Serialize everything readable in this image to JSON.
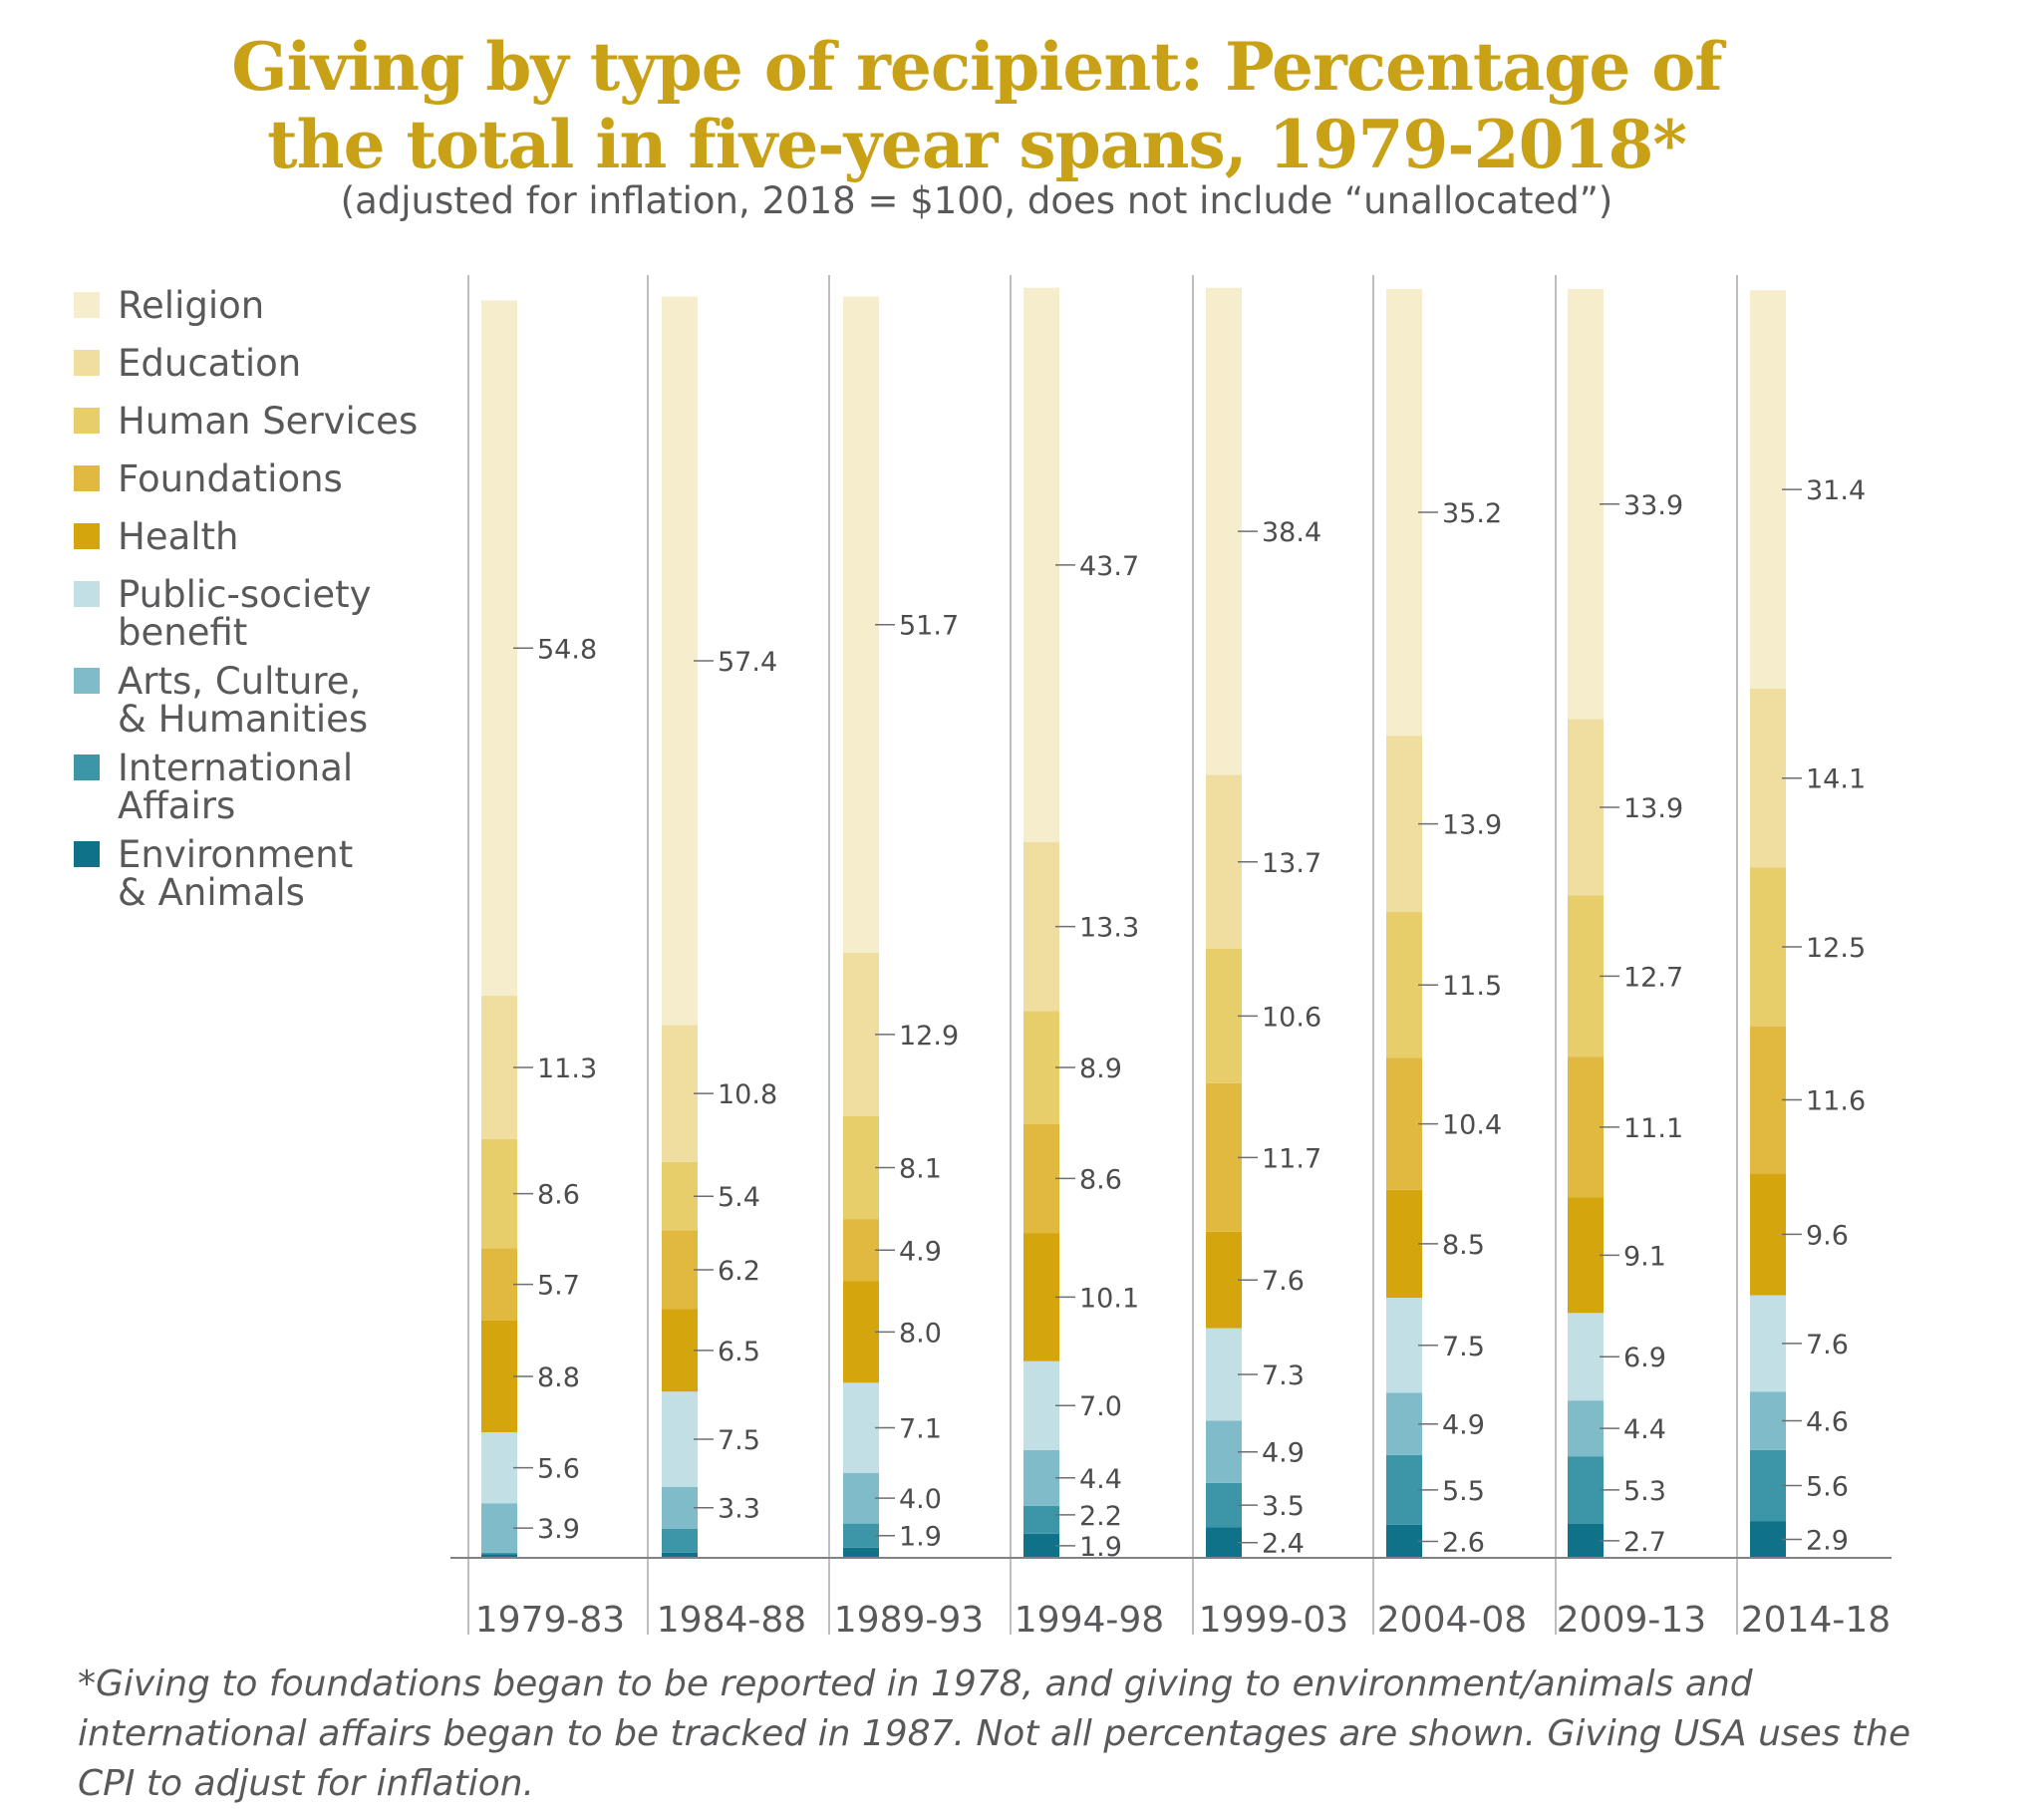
{
  "title_line1": "Giving by type of recipient: Percentage of",
  "title_line2": "the total in five-year spans, 1979-2018*",
  "subtitle": "(adjusted for inflation, 2018 = $100, does not include “unallocated”)",
  "footnote": "*Giving to foundations began to be reported in 1978, and giving to environment/animals and international affairs began to be tracked in 1987. Not all percentages are shown. Giving USA uses the CPI to adjust for inflation.",
  "colors": {
    "Religion": "#f6edcc",
    "Education": "#f0deA0",
    "Human Services": "#e8cd6b",
    "Foundations": "#e0b93e",
    "Health": "#d4a50d",
    "Public-society benefit": "#c1dfe5",
    "Arts, Culture, & Humanities": "#7fbbc9",
    "International Affairs": "#3d95a8",
    "Environment & Animals": "#0f7289"
  },
  "chart_data": {
    "type": "bar",
    "stacked": true,
    "categories": [
      "1979-83",
      "1984-88",
      "1989-93",
      "1994-98",
      "1999-03",
      "2004-08",
      "2009-13",
      "2014-18"
    ],
    "legend": [
      [
        "Religion"
      ],
      [
        "Education"
      ],
      [
        "Human Services"
      ],
      [
        "Foundations"
      ],
      [
        "Health"
      ],
      [
        "Public-society",
        "benefit"
      ],
      [
        "Arts, Culture,",
        "& Humanities"
      ],
      [
        "International",
        "Affairs"
      ],
      [
        "Environment",
        "& Animals"
      ]
    ],
    "series": [
      {
        "name": "Environment & Animals",
        "values": [
          0.3,
          0.4,
          0.8,
          1.9,
          2.4,
          2.6,
          2.7,
          2.9
        ],
        "labels": [
          "",
          "",
          "",
          "1.9",
          "2.4",
          "2.6",
          "2.7",
          "2.9"
        ]
      },
      {
        "name": "International Affairs",
        "values": [
          0.1,
          1.9,
          1.9,
          2.2,
          3.5,
          5.5,
          5.3,
          5.6
        ],
        "labels": [
          "",
          "",
          "1.9",
          "2.2",
          "3.5",
          "5.5",
          "5.3",
          "5.6"
        ]
      },
      {
        "name": "Arts, Culture, & Humanities",
        "values": [
          3.9,
          3.3,
          4.0,
          4.4,
          4.9,
          4.9,
          4.4,
          4.6
        ],
        "labels": [
          "3.9",
          "3.3",
          "4.0",
          "4.4",
          "4.9",
          "4.9",
          "4.4",
          "4.6"
        ]
      },
      {
        "name": "Public-society benefit",
        "values": [
          5.6,
          7.5,
          7.1,
          7.0,
          7.3,
          7.5,
          6.9,
          7.6
        ],
        "labels": [
          "5.6",
          "7.5",
          "7.1",
          "7.0",
          "7.3",
          "7.5",
          "6.9",
          "7.6"
        ]
      },
      {
        "name": "Health",
        "values": [
          8.8,
          6.5,
          8.0,
          10.1,
          7.6,
          8.5,
          9.1,
          9.6
        ],
        "labels": [
          "8.8",
          "6.5",
          "8.0",
          "10.1",
          "7.6",
          "8.5",
          "9.1",
          "9.6"
        ]
      },
      {
        "name": "Foundations",
        "values": [
          5.7,
          6.2,
          4.9,
          8.6,
          11.7,
          10.4,
          11.1,
          11.6
        ],
        "labels": [
          "5.7",
          "6.2",
          "4.9",
          "8.6",
          "11.7",
          "10.4",
          "11.1",
          "11.6"
        ]
      },
      {
        "name": "Human Services",
        "values": [
          8.6,
          5.4,
          8.1,
          8.9,
          10.6,
          11.5,
          12.7,
          12.5
        ],
        "labels": [
          "8.6",
          "5.4",
          "8.1",
          "8.9",
          "10.6",
          "11.5",
          "12.7",
          "12.5"
        ]
      },
      {
        "name": "Education",
        "values": [
          11.3,
          10.8,
          12.9,
          13.3,
          13.7,
          13.9,
          13.9,
          14.1
        ],
        "labels": [
          "11.3",
          "10.8",
          "12.9",
          "13.3",
          "13.7",
          "13.9",
          "13.9",
          "14.1"
        ]
      },
      {
        "name": "Religion",
        "values": [
          54.8,
          57.4,
          51.7,
          43.7,
          38.4,
          35.2,
          33.9,
          31.4
        ],
        "labels": [
          "54.8",
          "57.4",
          "51.7",
          "43.7",
          "38.4",
          "35.2",
          "33.9",
          "31.4"
        ]
      }
    ],
    "ylim": [
      0,
      100
    ],
    "grid": false,
    "legend_position": "left"
  }
}
